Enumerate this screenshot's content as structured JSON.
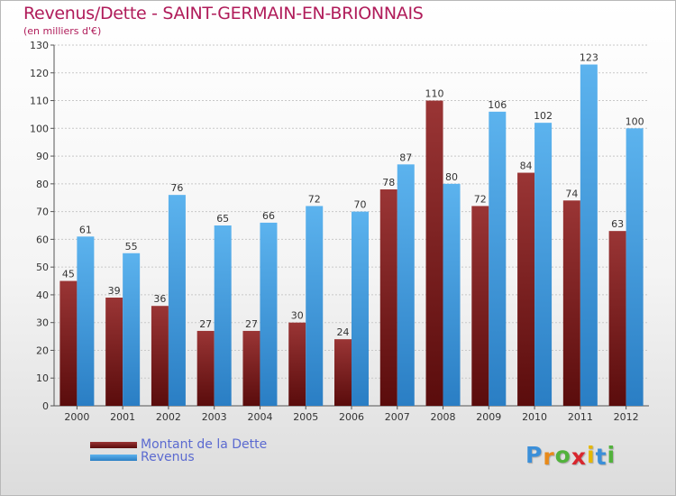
{
  "chart_data": {
    "type": "bar",
    "title": "Revenus/Dette - SAINT-GERMAIN-EN-BRIONNAIS",
    "subtitle": "(en milliers d'€)",
    "categories": [
      "2000",
      "2001",
      "2002",
      "2003",
      "2004",
      "2005",
      "2006",
      "2007",
      "2008",
      "2009",
      "2010",
      "2011",
      "2012"
    ],
    "series": [
      {
        "name": "Montant de la Dette",
        "color": "#8e2b2b",
        "values": [
          45,
          39,
          36,
          27,
          27,
          30,
          24,
          78,
          110,
          72,
          84,
          74,
          63
        ]
      },
      {
        "name": "Revenus",
        "color": "#4aa3e6",
        "values": [
          61,
          55,
          76,
          65,
          66,
          72,
          70,
          87,
          80,
          106,
          102,
          123,
          100
        ]
      }
    ],
    "ylim": [
      0,
      130
    ],
    "yticks": [
      0,
      10,
      20,
      30,
      40,
      50,
      60,
      70,
      80,
      90,
      100,
      110,
      120,
      130
    ],
    "grid": true,
    "legend": "bottom-left",
    "colors": {
      "title": "#b01c5a",
      "legend_text": "#5b6ad0"
    }
  },
  "logo": {
    "letters": [
      "P",
      "r",
      "o",
      "x",
      "i",
      "t",
      "i"
    ],
    "colors": [
      "#3b8fd9",
      "#e88a1a",
      "#52b23c",
      "#d8262e",
      "#e6b800",
      "#3b8fd9",
      "#52b23c"
    ]
  }
}
